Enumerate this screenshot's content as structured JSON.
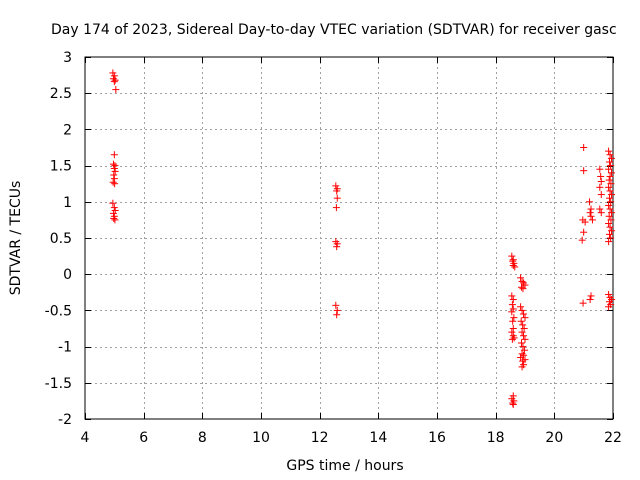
{
  "chart_data": {
    "type": "scatter",
    "title": "Day 174 of 2023, Sidereal Day-to-day VTEC variation (SDTVAR) for receiver gasc",
    "xlabel": "GPS time / hours",
    "ylabel": "SDTVAR / TECUs",
    "xlim": [
      4,
      22
    ],
    "ylim": [
      -2,
      3
    ],
    "xticks": [
      4,
      6,
      8,
      10,
      12,
      14,
      16,
      18,
      20,
      22
    ],
    "yticks": [
      -2,
      -1.5,
      -1,
      -0.5,
      0,
      0.5,
      1,
      1.5,
      2,
      2.5,
      3
    ],
    "xtick_labels": [
      "4",
      "6",
      "8",
      "10",
      "12",
      "14",
      "16",
      "18",
      "20",
      "22"
    ],
    "ytick_labels": [
      "-2",
      "-1.5",
      "-1",
      "-0.5",
      "0",
      "0.5",
      "1",
      "1.5",
      "2",
      "2.5",
      "3"
    ],
    "grid": true,
    "marker": "+",
    "color": "#ff0000",
    "series": [
      {
        "name": "SDTVAR",
        "points": [
          [
            4.95,
            2.78
          ],
          [
            5.0,
            2.74
          ],
          [
            4.97,
            2.7
          ],
          [
            5.03,
            2.68
          ],
          [
            5.0,
            2.66
          ],
          [
            5.05,
            2.55
          ],
          [
            5.0,
            1.65
          ],
          [
            4.97,
            1.52
          ],
          [
            5.02,
            1.5
          ],
          [
            5.0,
            1.46
          ],
          [
            5.03,
            1.42
          ],
          [
            4.98,
            1.37
          ],
          [
            5.0,
            1.32
          ],
          [
            4.96,
            1.27
          ],
          [
            5.01,
            1.25
          ],
          [
            4.95,
            0.98
          ],
          [
            5.0,
            0.92
          ],
          [
            5.03,
            0.88
          ],
          [
            4.97,
            0.84
          ],
          [
            5.0,
            0.8
          ],
          [
            4.98,
            0.77
          ],
          [
            5.02,
            0.75
          ],
          [
            12.55,
            1.22
          ],
          [
            12.6,
            1.18
          ],
          [
            12.58,
            1.15
          ],
          [
            12.6,
            1.05
          ],
          [
            12.57,
            0.92
          ],
          [
            12.55,
            0.45
          ],
          [
            12.6,
            0.42
          ],
          [
            12.58,
            0.38
          ],
          [
            12.55,
            -0.43
          ],
          [
            12.6,
            -0.5
          ],
          [
            12.58,
            -0.56
          ],
          [
            18.55,
            0.25
          ],
          [
            18.6,
            0.2
          ],
          [
            18.58,
            0.18
          ],
          [
            18.62,
            0.15
          ],
          [
            18.6,
            0.12
          ],
          [
            18.65,
            0.1
          ],
          [
            18.55,
            -0.3
          ],
          [
            18.6,
            -0.35
          ],
          [
            18.57,
            -0.42
          ],
          [
            18.6,
            -0.48
          ],
          [
            18.55,
            -0.52
          ],
          [
            18.62,
            -0.6
          ],
          [
            18.58,
            -0.65
          ],
          [
            18.6,
            -0.75
          ],
          [
            18.55,
            -0.8
          ],
          [
            18.6,
            -0.85
          ],
          [
            18.63,
            -0.88
          ],
          [
            18.57,
            -0.9
          ],
          [
            18.6,
            -1.68
          ],
          [
            18.55,
            -1.72
          ],
          [
            18.62,
            -1.75
          ],
          [
            18.58,
            -1.78
          ],
          [
            18.6,
            -1.8
          ],
          [
            18.85,
            -0.05
          ],
          [
            18.9,
            -0.1
          ],
          [
            18.95,
            -0.12
          ],
          [
            19.0,
            -0.15
          ],
          [
            18.88,
            -0.18
          ],
          [
            18.93,
            -0.2
          ],
          [
            18.85,
            -0.45
          ],
          [
            18.9,
            -0.5
          ],
          [
            18.95,
            -0.55
          ],
          [
            19.0,
            -0.6
          ],
          [
            18.87,
            -0.65
          ],
          [
            18.92,
            -0.7
          ],
          [
            18.97,
            -0.75
          ],
          [
            18.9,
            -0.8
          ],
          [
            18.95,
            -0.85
          ],
          [
            19.0,
            -0.9
          ],
          [
            18.88,
            -0.95
          ],
          [
            18.93,
            -1.0
          ],
          [
            18.98,
            -1.05
          ],
          [
            18.9,
            -1.1
          ],
          [
            18.95,
            -1.12
          ],
          [
            18.85,
            -1.15
          ],
          [
            19.0,
            -1.18
          ],
          [
            18.92,
            -1.2
          ],
          [
            18.95,
            -1.25
          ],
          [
            18.9,
            -1.28
          ],
          [
            21.0,
            1.75
          ],
          [
            21.0,
            1.43
          ],
          [
            20.97,
            0.75
          ],
          [
            21.05,
            0.72
          ],
          [
            21.0,
            0.58
          ],
          [
            20.95,
            0.47
          ],
          [
            20.98,
            -0.4
          ],
          [
            21.2,
            1.0
          ],
          [
            21.25,
            0.9
          ],
          [
            21.22,
            0.85
          ],
          [
            21.25,
            0.8
          ],
          [
            21.3,
            0.75
          ],
          [
            21.25,
            -0.3
          ],
          [
            21.22,
            -0.35
          ],
          [
            21.55,
            1.45
          ],
          [
            21.58,
            1.35
          ],
          [
            21.6,
            1.28
          ],
          [
            21.55,
            1.2
          ],
          [
            21.6,
            1.1
          ],
          [
            21.55,
            0.9
          ],
          [
            21.6,
            0.85
          ],
          [
            21.85,
            1.7
          ],
          [
            21.9,
            1.65
          ],
          [
            21.95,
            1.6
          ],
          [
            21.88,
            1.55
          ],
          [
            21.92,
            1.5
          ],
          [
            21.85,
            1.45
          ],
          [
            21.95,
            1.4
          ],
          [
            21.9,
            1.35
          ],
          [
            21.87,
            1.3
          ],
          [
            21.93,
            1.25
          ],
          [
            21.85,
            1.2
          ],
          [
            21.9,
            1.15
          ],
          [
            21.95,
            1.1
          ],
          [
            21.88,
            1.05
          ],
          [
            21.92,
            1.0
          ],
          [
            21.85,
            0.95
          ],
          [
            21.9,
            0.9
          ],
          [
            21.95,
            0.85
          ],
          [
            21.87,
            0.8
          ],
          [
            21.93,
            0.75
          ],
          [
            21.85,
            0.7
          ],
          [
            21.9,
            0.65
          ],
          [
            21.95,
            0.6
          ],
          [
            21.88,
            0.55
          ],
          [
            21.92,
            0.5
          ],
          [
            21.85,
            0.45
          ],
          [
            21.85,
            -0.28
          ],
          [
            21.9,
            -0.32
          ],
          [
            21.95,
            -0.35
          ],
          [
            21.88,
            -0.38
          ],
          [
            21.92,
            -0.42
          ],
          [
            21.85,
            -0.45
          ]
        ]
      }
    ]
  }
}
